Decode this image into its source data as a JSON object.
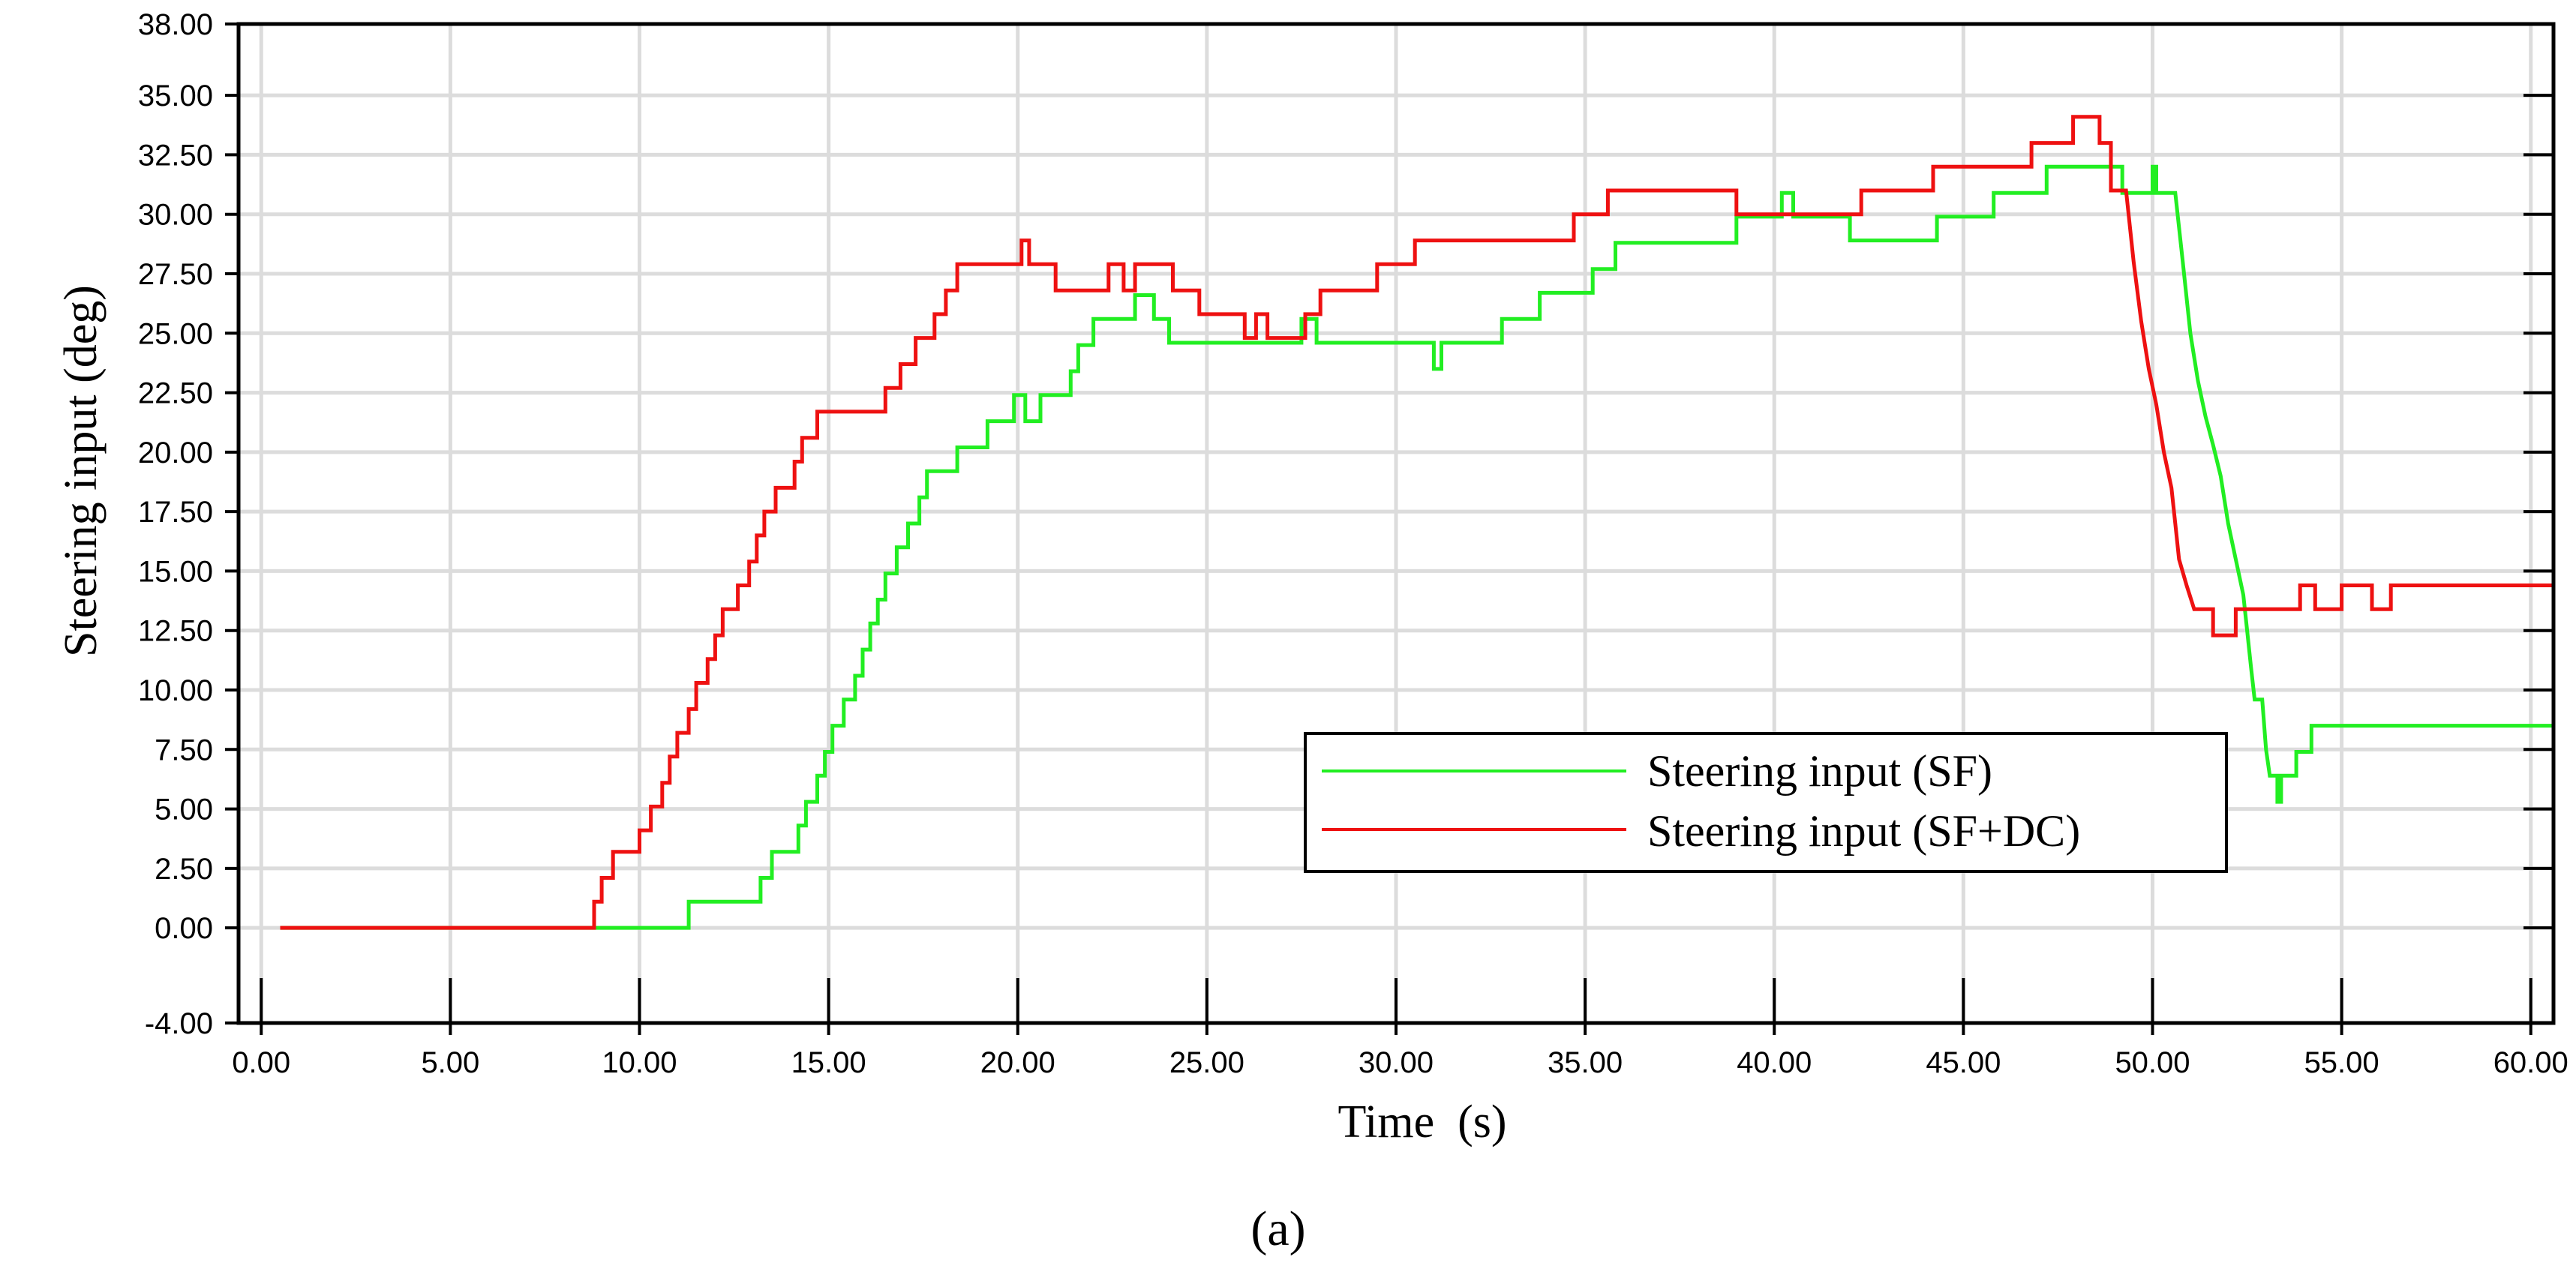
{
  "chart_data": {
    "type": "line",
    "title": "",
    "xlabel": "Time  (s)",
    "ylabel": "Steering input (deg)",
    "caption": "(a)",
    "xlim": [
      -0.6,
      60.6
    ],
    "ylim": [
      -4.0,
      38.0
    ],
    "x_ticks": [
      0,
      5,
      10,
      15,
      20,
      25,
      30,
      35,
      40,
      45,
      50,
      55,
      60
    ],
    "x_tick_labels": [
      "0.00",
      "5.00",
      "10.00",
      "15.00",
      "20.00",
      "25.00",
      "30.00",
      "35.00",
      "40.00",
      "45.00",
      "50.00",
      "55.00",
      "60.00"
    ],
    "y_ticks": [
      -4.0,
      0.0,
      2.5,
      5.0,
      7.5,
      10.0,
      12.5,
      15.0,
      17.5,
      20.0,
      22.5,
      25.0,
      27.5,
      30.0,
      32.5,
      35.0,
      38.0
    ],
    "y_tick_labels": [
      "-4.00",
      "0.00",
      "2.50",
      "5.00",
      "7.50",
      "10.00",
      "12.50",
      "15.00",
      "17.50",
      "20.00",
      "22.50",
      "25.00",
      "27.50",
      "30.00",
      "32.50",
      "35.00",
      "38.00"
    ],
    "grid": true,
    "legend_position": "bottom-right",
    "series": [
      {
        "name": "Steering input (SF)",
        "color": "#22ee22",
        "points": [
          [
            0.5,
            0.0
          ],
          [
            11.3,
            0.0
          ],
          [
            11.3,
            1.1
          ],
          [
            13.2,
            1.1
          ],
          [
            13.2,
            2.1
          ],
          [
            13.5,
            2.1
          ],
          [
            13.5,
            3.2
          ],
          [
            14.2,
            3.2
          ],
          [
            14.2,
            4.3
          ],
          [
            14.4,
            4.3
          ],
          [
            14.4,
            5.3
          ],
          [
            14.7,
            5.3
          ],
          [
            14.7,
            6.4
          ],
          [
            14.9,
            6.4
          ],
          [
            14.9,
            7.4
          ],
          [
            15.1,
            7.4
          ],
          [
            15.1,
            8.5
          ],
          [
            15.4,
            8.5
          ],
          [
            15.4,
            9.6
          ],
          [
            15.7,
            9.6
          ],
          [
            15.7,
            10.6
          ],
          [
            15.9,
            10.6
          ],
          [
            15.9,
            11.7
          ],
          [
            16.1,
            11.7
          ],
          [
            16.1,
            12.8
          ],
          [
            16.3,
            12.8
          ],
          [
            16.3,
            13.8
          ],
          [
            16.5,
            13.8
          ],
          [
            16.5,
            14.9
          ],
          [
            16.8,
            14.9
          ],
          [
            16.8,
            16.0
          ],
          [
            17.1,
            16.0
          ],
          [
            17.1,
            17.0
          ],
          [
            17.4,
            17.0
          ],
          [
            17.4,
            18.1
          ],
          [
            17.6,
            18.1
          ],
          [
            17.6,
            19.2
          ],
          [
            18.4,
            19.2
          ],
          [
            18.4,
            20.2
          ],
          [
            19.2,
            20.2
          ],
          [
            19.2,
            21.3
          ],
          [
            19.9,
            21.3
          ],
          [
            19.9,
            22.4
          ],
          [
            20.2,
            22.4
          ],
          [
            20.2,
            21.3
          ],
          [
            20.6,
            21.3
          ],
          [
            20.6,
            22.4
          ],
          [
            21.4,
            22.4
          ],
          [
            21.4,
            23.4
          ],
          [
            21.6,
            23.4
          ],
          [
            21.6,
            24.5
          ],
          [
            22.0,
            24.5
          ],
          [
            22.0,
            25.6
          ],
          [
            23.1,
            25.6
          ],
          [
            23.1,
            26.6
          ],
          [
            23.6,
            26.6
          ],
          [
            23.6,
            25.6
          ],
          [
            24.0,
            25.6
          ],
          [
            24.0,
            24.6
          ],
          [
            27.5,
            24.6
          ],
          [
            27.5,
            25.6
          ],
          [
            27.9,
            25.6
          ],
          [
            27.9,
            24.6
          ],
          [
            31.0,
            24.6
          ],
          [
            31.0,
            23.5
          ],
          [
            31.2,
            23.5
          ],
          [
            31.2,
            24.6
          ],
          [
            32.8,
            24.6
          ],
          [
            32.8,
            25.6
          ],
          [
            33.8,
            25.6
          ],
          [
            33.8,
            26.7
          ],
          [
            35.2,
            26.7
          ],
          [
            35.2,
            27.7
          ],
          [
            35.8,
            27.7
          ],
          [
            35.8,
            28.8
          ],
          [
            39.0,
            28.8
          ],
          [
            39.0,
            29.9
          ],
          [
            40.2,
            29.9
          ],
          [
            40.2,
            30.9
          ],
          [
            40.5,
            30.9
          ],
          [
            40.5,
            29.9
          ],
          [
            42.0,
            29.9
          ],
          [
            42.0,
            28.9
          ],
          [
            44.3,
            28.9
          ],
          [
            44.3,
            29.9
          ],
          [
            45.8,
            29.9
          ],
          [
            45.8,
            30.9
          ],
          [
            47.2,
            30.9
          ],
          [
            47.2,
            32.0
          ],
          [
            49.2,
            32.0
          ],
          [
            49.2,
            30.9
          ],
          [
            50.0,
            30.9
          ],
          [
            50.0,
            32.0
          ],
          [
            50.1,
            32.0
          ],
          [
            50.1,
            30.9
          ],
          [
            50.6,
            30.9
          ],
          [
            50.8,
            28.0
          ],
          [
            51.0,
            25.0
          ],
          [
            51.2,
            23.0
          ],
          [
            51.4,
            21.5
          ],
          [
            51.6,
            20.3
          ],
          [
            51.8,
            19.0
          ],
          [
            52.0,
            17.0
          ],
          [
            52.2,
            15.5
          ],
          [
            52.4,
            14.0
          ],
          [
            52.5,
            12.5
          ],
          [
            52.6,
            11.0
          ],
          [
            52.7,
            9.6
          ],
          [
            52.9,
            9.6
          ],
          [
            53.0,
            7.5
          ],
          [
            53.1,
            6.4
          ],
          [
            53.3,
            6.4
          ],
          [
            53.3,
            5.3
          ],
          [
            53.4,
            5.3
          ],
          [
            53.4,
            6.4
          ],
          [
            53.8,
            6.4
          ],
          [
            53.8,
            7.4
          ],
          [
            54.2,
            7.4
          ],
          [
            54.2,
            8.5
          ],
          [
            60.6,
            8.5
          ]
        ]
      },
      {
        "name": "Steering input (SF+DC)",
        "color": "#ee1111",
        "points": [
          [
            0.5,
            0.0
          ],
          [
            8.8,
            0.0
          ],
          [
            8.8,
            1.1
          ],
          [
            9.0,
            1.1
          ],
          [
            9.0,
            2.1
          ],
          [
            9.3,
            2.1
          ],
          [
            9.3,
            3.2
          ],
          [
            10.0,
            3.2
          ],
          [
            10.0,
            4.1
          ],
          [
            10.3,
            4.1
          ],
          [
            10.3,
            5.1
          ],
          [
            10.6,
            5.1
          ],
          [
            10.6,
            6.1
          ],
          [
            10.8,
            6.1
          ],
          [
            10.8,
            7.2
          ],
          [
            11.0,
            7.2
          ],
          [
            11.0,
            8.2
          ],
          [
            11.3,
            8.2
          ],
          [
            11.3,
            9.2
          ],
          [
            11.5,
            9.2
          ],
          [
            11.5,
            10.3
          ],
          [
            11.8,
            10.3
          ],
          [
            11.8,
            11.3
          ],
          [
            12.0,
            11.3
          ],
          [
            12.0,
            12.3
          ],
          [
            12.2,
            12.3
          ],
          [
            12.2,
            13.4
          ],
          [
            12.6,
            13.4
          ],
          [
            12.6,
            14.4
          ],
          [
            12.9,
            14.4
          ],
          [
            12.9,
            15.4
          ],
          [
            13.1,
            15.4
          ],
          [
            13.1,
            16.5
          ],
          [
            13.3,
            16.5
          ],
          [
            13.3,
            17.5
          ],
          [
            13.6,
            17.5
          ],
          [
            13.6,
            18.5
          ],
          [
            14.1,
            18.5
          ],
          [
            14.1,
            19.6
          ],
          [
            14.3,
            19.6
          ],
          [
            14.3,
            20.6
          ],
          [
            14.7,
            20.6
          ],
          [
            14.7,
            21.7
          ],
          [
            16.5,
            21.7
          ],
          [
            16.5,
            22.7
          ],
          [
            16.9,
            22.7
          ],
          [
            16.9,
            23.7
          ],
          [
            17.3,
            23.7
          ],
          [
            17.3,
            24.8
          ],
          [
            17.8,
            24.8
          ],
          [
            17.8,
            25.8
          ],
          [
            18.1,
            25.8
          ],
          [
            18.1,
            26.8
          ],
          [
            18.4,
            26.8
          ],
          [
            18.4,
            27.9
          ],
          [
            20.1,
            27.9
          ],
          [
            20.1,
            28.9
          ],
          [
            20.3,
            28.9
          ],
          [
            20.3,
            27.9
          ],
          [
            21.0,
            27.9
          ],
          [
            21.0,
            26.8
          ],
          [
            22.4,
            26.8
          ],
          [
            22.4,
            27.9
          ],
          [
            22.8,
            27.9
          ],
          [
            22.8,
            26.8
          ],
          [
            23.1,
            26.8
          ],
          [
            23.1,
            27.9
          ],
          [
            24.1,
            27.9
          ],
          [
            24.1,
            26.8
          ],
          [
            24.8,
            26.8
          ],
          [
            24.8,
            25.8
          ],
          [
            26.0,
            25.8
          ],
          [
            26.0,
            24.8
          ],
          [
            26.3,
            24.8
          ],
          [
            26.3,
            25.8
          ],
          [
            26.6,
            25.8
          ],
          [
            26.6,
            24.8
          ],
          [
            27.6,
            24.8
          ],
          [
            27.6,
            25.8
          ],
          [
            28.0,
            25.8
          ],
          [
            28.0,
            26.8
          ],
          [
            29.5,
            26.8
          ],
          [
            29.5,
            27.9
          ],
          [
            30.5,
            27.9
          ],
          [
            30.5,
            28.9
          ],
          [
            34.7,
            28.9
          ],
          [
            34.7,
            30.0
          ],
          [
            35.6,
            30.0
          ],
          [
            35.6,
            31.0
          ],
          [
            39.0,
            31.0
          ],
          [
            39.0,
            30.0
          ],
          [
            42.3,
            30.0
          ],
          [
            42.3,
            31.0
          ],
          [
            44.2,
            31.0
          ],
          [
            44.2,
            32.0
          ],
          [
            46.8,
            32.0
          ],
          [
            46.8,
            33.0
          ],
          [
            47.9,
            33.0
          ],
          [
            47.9,
            34.1
          ],
          [
            48.6,
            34.1
          ],
          [
            48.6,
            33.0
          ],
          [
            48.9,
            33.0
          ],
          [
            48.9,
            31.0
          ],
          [
            49.3,
            31.0
          ],
          [
            49.5,
            28.0
          ],
          [
            49.7,
            25.5
          ],
          [
            49.9,
            23.5
          ],
          [
            50.1,
            22.0
          ],
          [
            50.3,
            20.0
          ],
          [
            50.5,
            18.5
          ],
          [
            50.6,
            17.0
          ],
          [
            50.7,
            15.5
          ],
          [
            50.9,
            14.4
          ],
          [
            51.1,
            13.4
          ],
          [
            51.6,
            13.4
          ],
          [
            51.6,
            12.3
          ],
          [
            52.2,
            12.3
          ],
          [
            52.2,
            13.4
          ],
          [
            53.9,
            13.4
          ],
          [
            53.9,
            14.4
          ],
          [
            54.3,
            14.4
          ],
          [
            54.3,
            13.4
          ],
          [
            55.0,
            13.4
          ],
          [
            55.0,
            14.4
          ],
          [
            55.8,
            14.4
          ],
          [
            55.8,
            13.4
          ],
          [
            56.3,
            13.4
          ],
          [
            56.3,
            14.4
          ],
          [
            60.6,
            14.4
          ]
        ]
      }
    ]
  }
}
